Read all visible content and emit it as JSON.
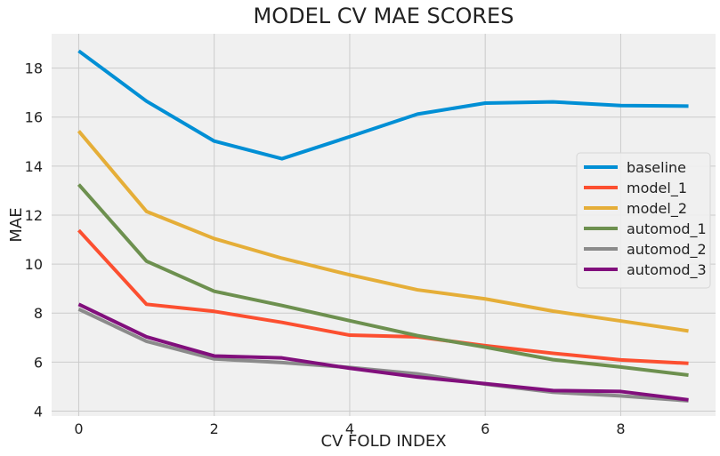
{
  "chart_data": {
    "type": "line",
    "title": "MODEL CV MAE SCORES",
    "xlabel": "CV FOLD INDEX",
    "ylabel": "MAE",
    "x": [
      0,
      1,
      2,
      3,
      4,
      5,
      6,
      7,
      8,
      9
    ],
    "xlim": [
      -0.4,
      9.4
    ],
    "ylim": [
      3.8,
      19.4
    ],
    "xticks": [
      0,
      2,
      4,
      6,
      8
    ],
    "yticks": [
      4,
      6,
      8,
      10,
      12,
      14,
      16,
      18
    ],
    "grid": true,
    "legend_position": "right",
    "series": [
      {
        "name": "baseline",
        "color": "#008fd5",
        "values": [
          18.7,
          16.65,
          15.02,
          14.3,
          15.2,
          16.12,
          16.57,
          16.62,
          16.47,
          16.45
        ]
      },
      {
        "name": "model_1",
        "color": "#fc4f30",
        "values": [
          11.38,
          8.36,
          8.07,
          7.62,
          7.1,
          7.03,
          6.67,
          6.36,
          6.09,
          5.95
        ]
      },
      {
        "name": "model_2",
        "color": "#e5ae38",
        "values": [
          15.43,
          12.15,
          11.04,
          10.24,
          9.56,
          8.95,
          8.58,
          8.08,
          7.68,
          7.27
        ]
      },
      {
        "name": "automod_1",
        "color": "#6d904f",
        "values": [
          13.25,
          10.12,
          8.89,
          8.31,
          7.69,
          7.08,
          6.61,
          6.1,
          5.8,
          5.47
        ]
      },
      {
        "name": "automod_2",
        "color": "#8b8b8b",
        "values": [
          8.16,
          6.85,
          6.13,
          5.98,
          5.78,
          5.52,
          5.1,
          4.77,
          4.62,
          4.42
        ]
      },
      {
        "name": "automod_3",
        "color": "#810f7c",
        "values": [
          8.36,
          7.03,
          6.25,
          6.17,
          5.75,
          5.39,
          5.12,
          4.84,
          4.8,
          4.46
        ]
      }
    ]
  }
}
